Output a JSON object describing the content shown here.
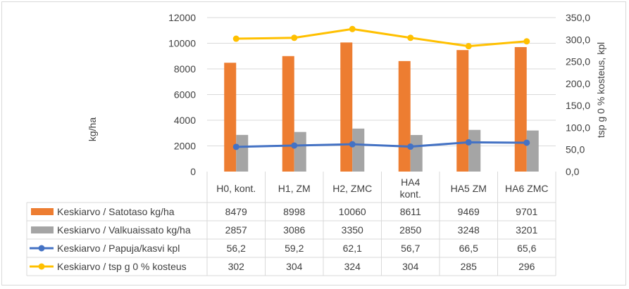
{
  "chart_data": {
    "type": "bar+line+table",
    "categories": [
      [
        "H0, kont."
      ],
      [
        "H1, ZM"
      ],
      [
        "H2, ZMC"
      ],
      [
        "HA4",
        "kont."
      ],
      [
        "HA5 ZM"
      ],
      [
        "HA6 ZMC"
      ]
    ],
    "primary_axis": {
      "label": "kg/ha",
      "ylim": [
        0,
        12000
      ],
      "ticks": [
        "0",
        "2000",
        "4000",
        "6000",
        "8000",
        "10000",
        "12000"
      ]
    },
    "secondary_axis": {
      "label": "tsp g 0 % kosteus, kpl",
      "ylim": [
        0,
        350
      ],
      "ticks": [
        "0,0",
        "50,0",
        "100,0",
        "150,0",
        "200,0",
        "250,0",
        "300,0",
        "350,0"
      ]
    },
    "series": [
      {
        "name": "Keskiarvo  / Satotaso kg/ha",
        "kind": "bar",
        "axis": "primary",
        "color": "#ED7D31",
        "values": [
          8479,
          8998,
          10060,
          8611,
          9469,
          9701
        ],
        "labels": [
          "8479",
          "8998",
          "10060",
          "8611",
          "9469",
          "9701"
        ]
      },
      {
        "name": "Keskiarvo  / Valkuaissato kg/ha",
        "kind": "bar",
        "axis": "primary",
        "color": "#A5A5A5",
        "values": [
          2857,
          3086,
          3350,
          2850,
          3248,
          3201
        ],
        "labels": [
          "2857",
          "3086",
          "3350",
          "2850",
          "3248",
          "3201"
        ]
      },
      {
        "name": "Keskiarvo  / Papuja/kasvi kpl",
        "kind": "line",
        "axis": "secondary",
        "color": "#4472C4",
        "values": [
          56.2,
          59.2,
          62.1,
          56.7,
          66.5,
          65.6
        ],
        "labels": [
          "56,2",
          "59,2",
          "62,1",
          "56,7",
          "66,5",
          "65,6"
        ]
      },
      {
        "name": "Keskiarvo  / tsp g 0 % kosteus",
        "kind": "line",
        "axis": "secondary",
        "color": "#FFC000",
        "values": [
          302,
          304,
          324,
          304,
          285,
          296
        ],
        "labels": [
          "302",
          "304",
          "324",
          "304",
          "285",
          "296"
        ]
      }
    ]
  }
}
